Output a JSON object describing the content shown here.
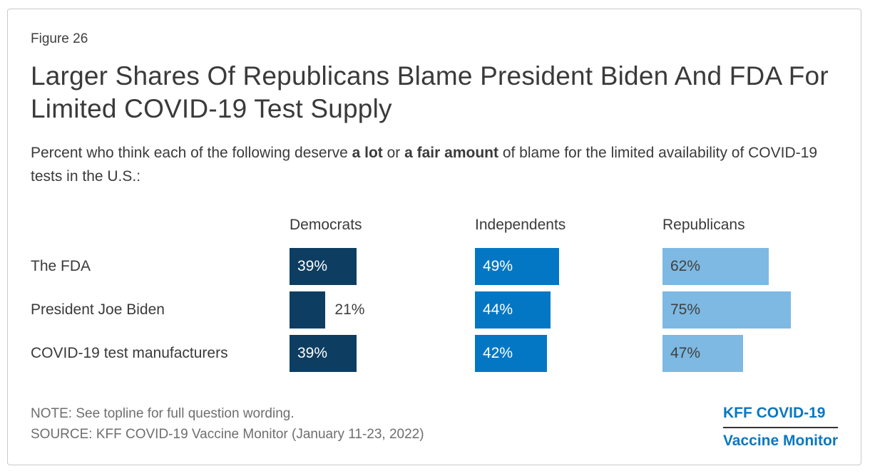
{
  "figure": {
    "label": "Figure 26",
    "title": "Larger Shares Of Republicans Blame President Biden And FDA For Limited COVID-19 Test Supply",
    "subtitle_segments": [
      {
        "text": "Percent who think each of the following deserve ",
        "bold": false
      },
      {
        "text": "a lot",
        "bold": true
      },
      {
        "text": " or ",
        "bold": false
      },
      {
        "text": "a fair amount",
        "bold": true
      },
      {
        "text": " of blame for the limited availability of COVID-19 tests in the U.S.:",
        "bold": false
      }
    ]
  },
  "chart_data": {
    "type": "bar",
    "orientation": "horizontal",
    "categories": [
      "The FDA",
      "President Joe Biden",
      "COVID-19 test manufacturers"
    ],
    "series": [
      {
        "name": "Democrats",
        "values": [
          39,
          21,
          39
        ],
        "color": "#0d3e62",
        "label_color": "#ffffff"
      },
      {
        "name": "Independents",
        "values": [
          49,
          44,
          42
        ],
        "color": "#0477c4",
        "label_color": "#ffffff"
      },
      {
        "name": "Republicans",
        "values": [
          62,
          75,
          47
        ],
        "color": "#7db9e2",
        "label_color": "#404040"
      }
    ],
    "value_suffix": "%",
    "xlim": [
      0,
      100
    ],
    "grid": false,
    "legend_position": "column-headers"
  },
  "footer": {
    "note": "NOTE: See topline for full question wording.",
    "source": "SOURCE: KFF COVID-19 Vaccine Monitor (January 11-23, 2022)"
  },
  "logo": {
    "line1": "KFF COVID-19",
    "line2": "Vaccine Monitor",
    "color": "#0b77c0"
  }
}
